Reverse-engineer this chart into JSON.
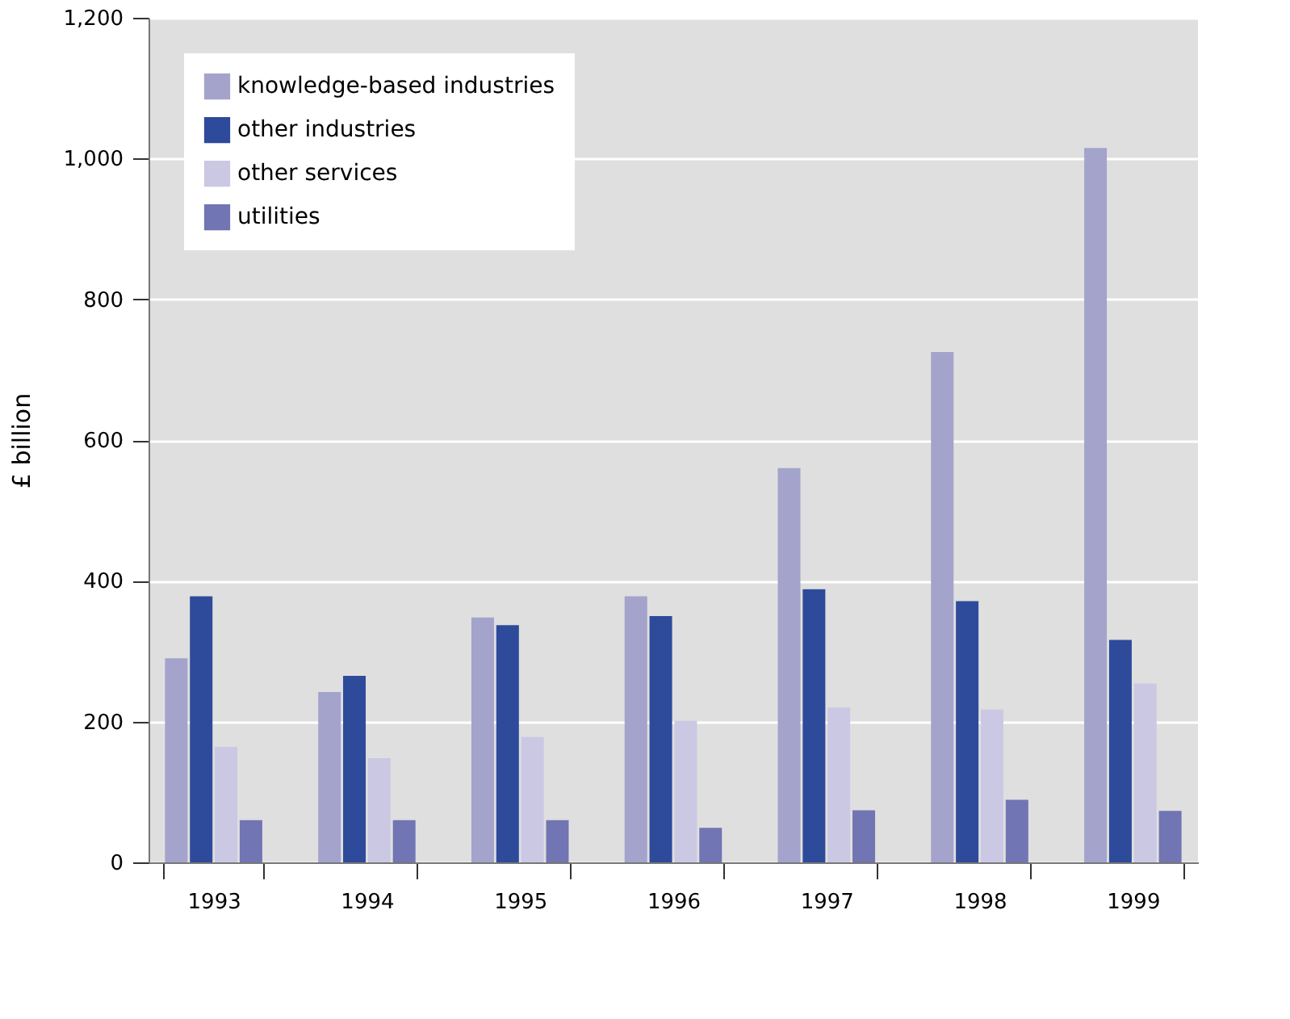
{
  "chart_data": {
    "type": "bar",
    "ylabel": "£ billion",
    "categories": [
      "1993",
      "1994",
      "1995",
      "1996",
      "1997",
      "1998",
      "1999"
    ],
    "series": [
      {
        "name": "knowledge-based industries",
        "color": "#a3a3cc",
        "values": [
          290,
          242,
          348,
          378,
          560,
          725,
          1015
        ]
      },
      {
        "name": "other industries",
        "color": "#2e4a9a",
        "values": [
          378,
          265,
          337,
          350,
          388,
          371,
          316
        ]
      },
      {
        "name": "other services",
        "color": "#cac8e3",
        "values": [
          164,
          148,
          178,
          201,
          220,
          217,
          254
        ]
      },
      {
        "name": "utilities",
        "color": "#7175b3",
        "values": [
          60,
          60,
          60,
          49,
          74,
          89,
          73
        ]
      }
    ],
    "ylim": [
      0,
      1200
    ],
    "yticks": [
      0,
      200,
      400,
      600,
      800,
      {
        "value": 1000,
        "label": "1,000"
      },
      {
        "value": 1200,
        "label": "1,200"
      }
    ],
    "grid": "y",
    "legend": "top left"
  }
}
